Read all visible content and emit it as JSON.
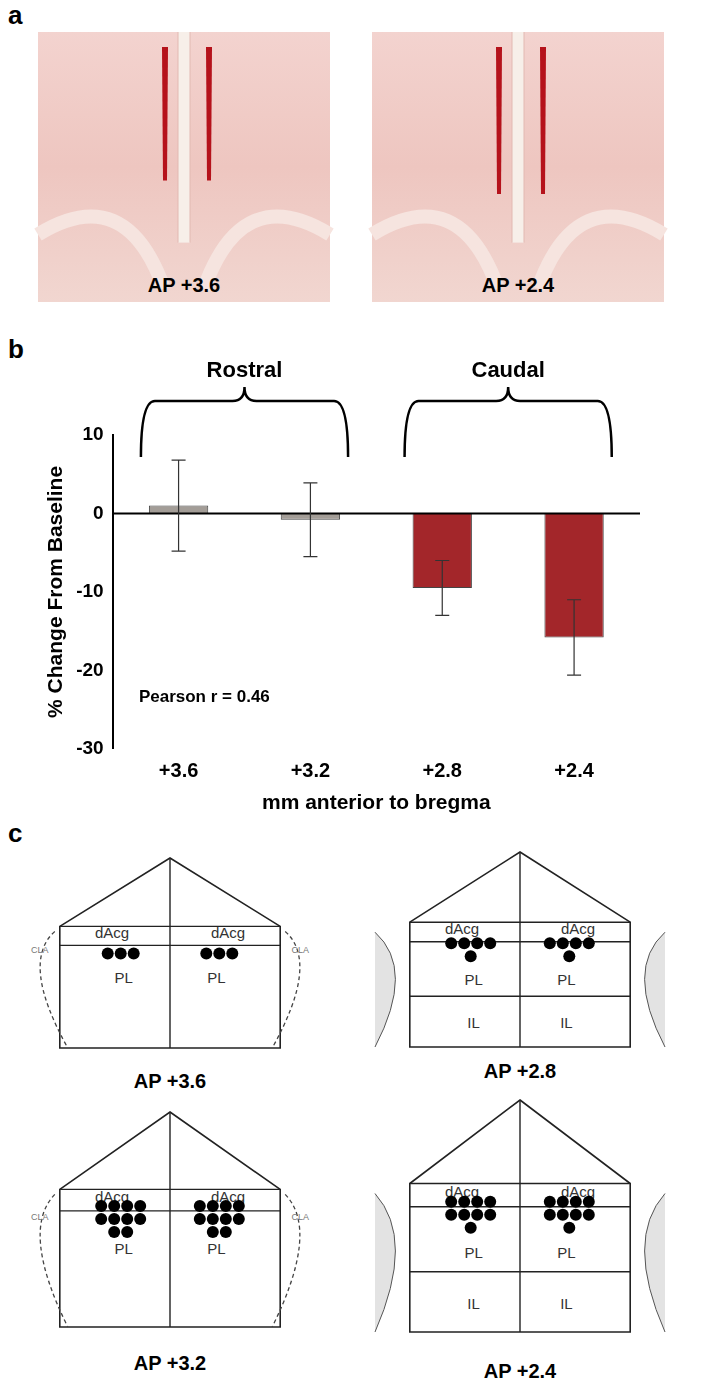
{
  "panel_labels": [
    "a",
    "b",
    "c"
  ],
  "panel_a": {
    "images": [
      {
        "caption": "AP +3.6"
      },
      {
        "caption": "AP +2.4"
      }
    ]
  },
  "chart_data": {
    "type": "bar",
    "categories": [
      "+3.6",
      "+3.2",
      "+2.8",
      "+2.4"
    ],
    "values": [
      1.0,
      -0.8,
      -9.5,
      -15.8
    ],
    "errors": [
      5.8,
      4.7,
      3.5,
      4.8
    ],
    "colors": [
      "#a39d97",
      "#a39d97",
      "#a3262a",
      "#a3262a"
    ],
    "y_label": "% Change From Baseline",
    "x_label": "mm anterior to bregma",
    "ylim": [
      -30,
      10
    ],
    "yticks": [
      -30,
      -20,
      -10,
      0,
      10
    ],
    "groups": [
      {
        "label": "Rostral",
        "categories": [
          "+3.6",
          "+3.2"
        ]
      },
      {
        "label": "Caudal",
        "categories": [
          "+2.8",
          "+2.4"
        ]
      }
    ],
    "annotations": [
      "Pearson r = 0.46"
    ],
    "grid": false
  },
  "panel_c": {
    "sections": [
      {
        "caption": "AP +3.6",
        "regions": [
          "dAcg",
          "PL"
        ],
        "side_label": "CLA",
        "sites_left": 3,
        "sites_right": 3
      },
      {
        "caption": "AP +3.2",
        "regions": [
          "dAcg",
          "PL"
        ],
        "side_label": "CLA",
        "sites_left": 10,
        "sites_right": 10
      },
      {
        "caption": "AP +2.8",
        "regions": [
          "dAcg",
          "PL",
          "IL"
        ],
        "sites_left": 5,
        "sites_right": 5
      },
      {
        "caption": "AP +2.4",
        "regions": [
          "dAcg",
          "PL",
          "IL"
        ],
        "sites_left": 9,
        "sites_right": 9
      }
    ]
  }
}
